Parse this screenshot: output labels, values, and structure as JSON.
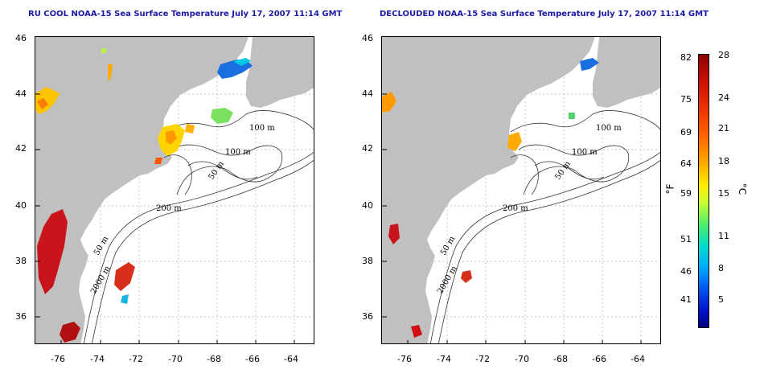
{
  "panels": [
    {
      "title": "RU COOL NOAA-15 Sea Surface Temperature July 17, 2007 11:14 GMT"
    },
    {
      "title": "DECLOUDED NOAA-15 Sea Surface Temperature July 17, 2007 11:14 GMT"
    }
  ],
  "axes": {
    "lon_ticks": [
      "-76",
      "-74",
      "-72",
      "-70",
      "-68",
      "-66",
      "-64"
    ],
    "lat_ticks": [
      "46",
      "44",
      "42",
      "40",
      "38",
      "36"
    ]
  },
  "contours": {
    "labels_left": [
      "100 m",
      "100 m",
      "50 m",
      "200 m",
      "50 m",
      "2000 m"
    ],
    "labels_right": [
      "100 m",
      "100 m",
      "50 m",
      "200 m",
      "50 m",
      "2000 m"
    ]
  },
  "colorbar": {
    "fahrenheit_ticks": [
      "82",
      "75",
      "69",
      "64",
      "59",
      "51",
      "46",
      "41"
    ],
    "celsius_ticks": [
      "28",
      "24",
      "21",
      "18",
      "15",
      "11",
      "8",
      "5"
    ],
    "fahrenheit_unit": "°F",
    "celsius_unit": "°C",
    "colors": {
      "warm": "#8b0000",
      "cold": "#000080",
      "land": "#c0c0c0"
    }
  }
}
